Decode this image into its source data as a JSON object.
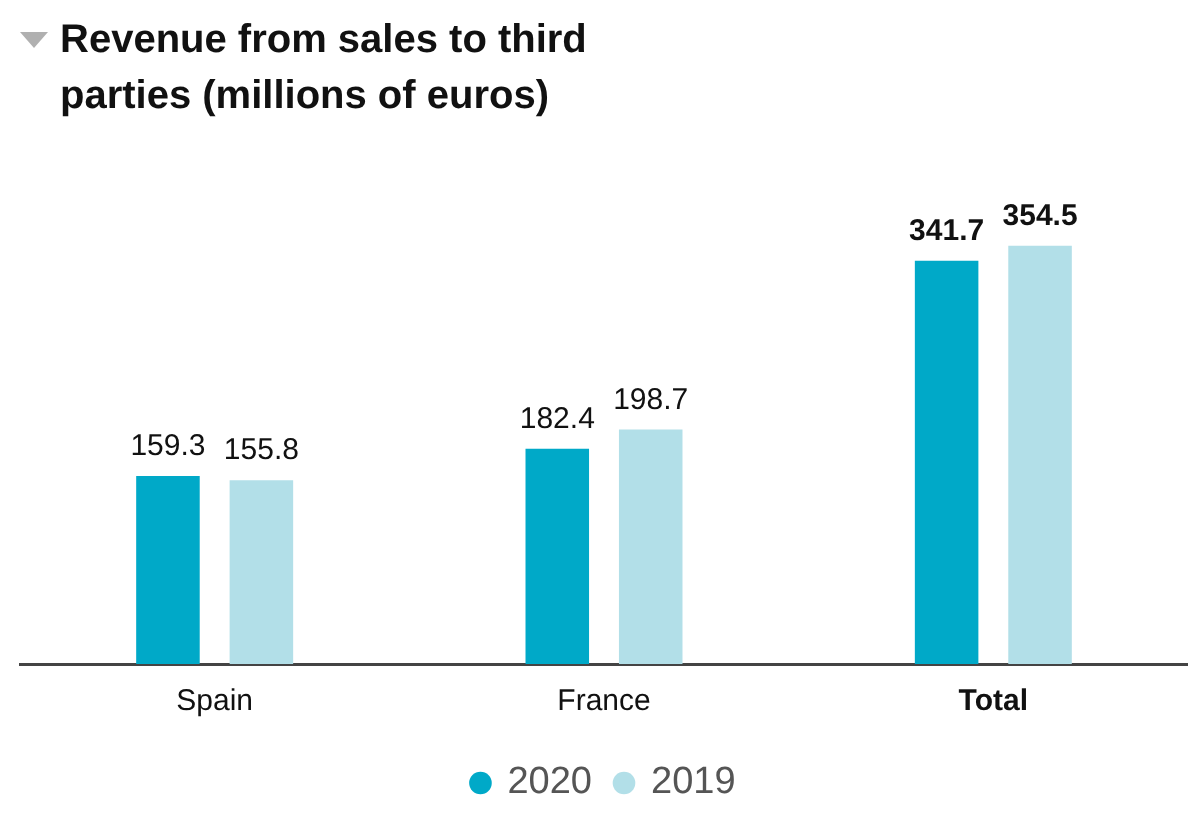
{
  "chart_data": {
    "type": "bar",
    "title": "Revenue from sales to third parties (millions of euros)",
    "categories": [
      "Spain",
      "France",
      "Total"
    ],
    "series": [
      {
        "name": "2020",
        "color": "#00a9c8",
        "values": [
          159.3,
          182.4,
          341.7
        ]
      },
      {
        "name": "2019",
        "color": "#b2dfe8",
        "values": [
          155.8,
          198.7,
          354.5
        ]
      }
    ],
    "data_labels": true,
    "grid": false,
    "legend": "bottom"
  }
}
